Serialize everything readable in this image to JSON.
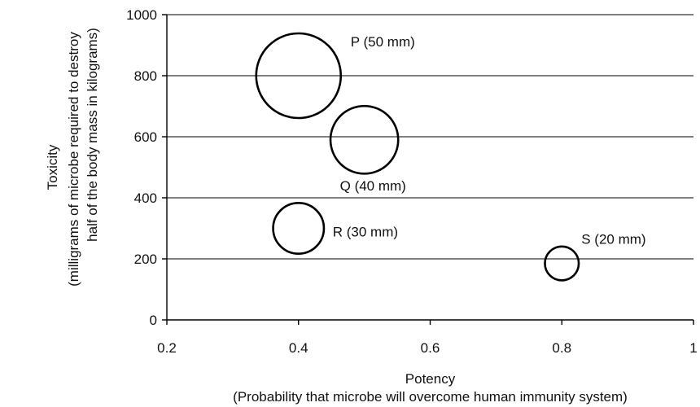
{
  "chart_data": {
    "type": "bubble",
    "xlabel": "Potency",
    "xlabel_sub": "(Probability that microbe will overcome human immunity system)",
    "ylabel": "Toxicity",
    "ylabel_sub1": "(milligrams of microbe required to destroy",
    "ylabel_sub2": "half of the body mass in kilograms)",
    "xlim": [
      0.2,
      1
    ],
    "ylim": [
      0,
      1000
    ],
    "xticks": [
      0.2,
      0.4,
      0.6,
      0.8,
      1
    ],
    "xtick_labels": [
      "0.2",
      "0.4",
      "0.6",
      "0.8",
      "1"
    ],
    "yticks": [
      0,
      200,
      400,
      600,
      800,
      1000
    ],
    "ytick_labels": [
      "0",
      "200",
      "400",
      "600",
      "800",
      "1000"
    ],
    "grid": "horizontal",
    "points": [
      {
        "label": "P (50 mm)",
        "x": 0.4,
        "y": 800,
        "size": 50
      },
      {
        "label": "Q (40 mm)",
        "x": 0.5,
        "y": 590,
        "size": 40
      },
      {
        "label": "R (30 mm)",
        "x": 0.4,
        "y": 300,
        "size": 30
      },
      {
        "label": "S (20 mm)",
        "x": 0.8,
        "y": 185,
        "size": 20
      }
    ]
  }
}
